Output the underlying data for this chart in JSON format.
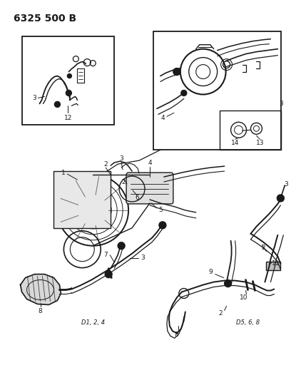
{
  "title": "6325 500 B",
  "bg_color": "#ffffff",
  "line_color": "#1a1a1a",
  "label_fontsize": 6.5,
  "caption_fontsize": 6.0,
  "caption_left": "D1, 2, 4",
  "caption_right": "D5, 6, 8",
  "fig_width": 4.08,
  "fig_height": 5.33,
  "dpi": 100,
  "title_font": 10,
  "title_bold": true
}
